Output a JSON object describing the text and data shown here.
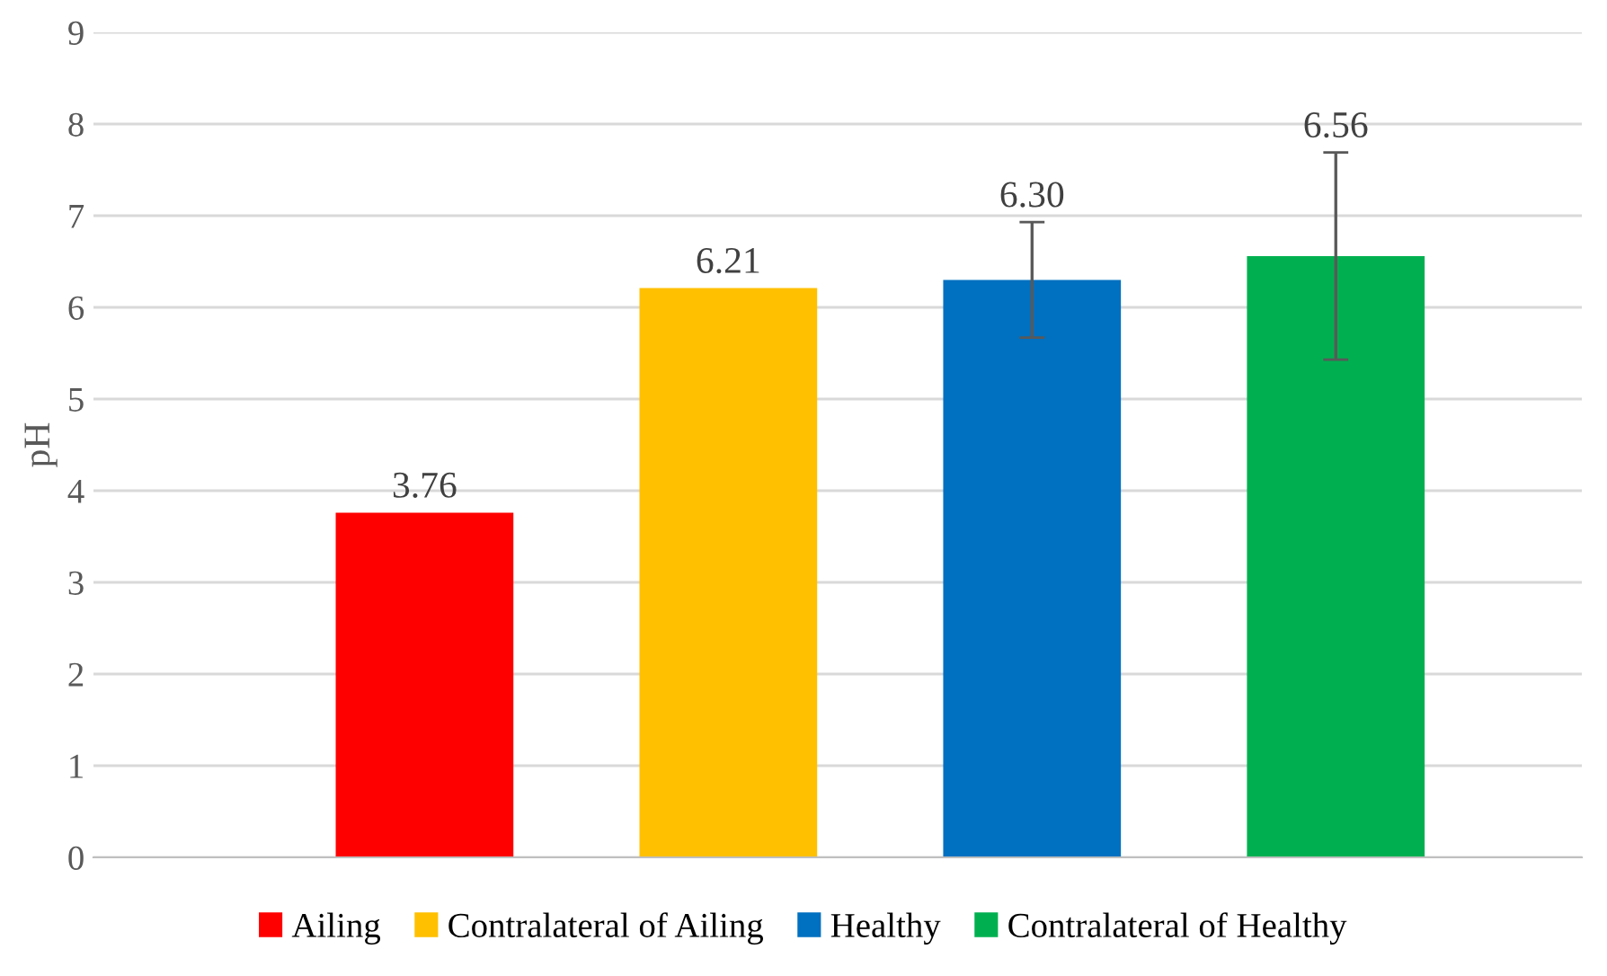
{
  "chart_data": {
    "type": "bar",
    "ylabel": "pH",
    "categories": [
      null
    ],
    "series": [
      {
        "name": "Ailing",
        "color": "#ff0000",
        "values": [
          3.76
        ],
        "errors": [
          null
        ],
        "value_labels": [
          "3.76"
        ]
      },
      {
        "name": "Contralateral of Ailing",
        "color": "#ffc000",
        "values": [
          6.21
        ],
        "errors": [
          null
        ],
        "value_labels": [
          "6.21"
        ]
      },
      {
        "name": "Healthy",
        "color": "#0070c0",
        "values": [
          6.3
        ],
        "errors": [
          0.63
        ],
        "value_labels": [
          "6.30"
        ]
      },
      {
        "name": "Contralateral of Healthy",
        "color": "#00b050",
        "values": [
          6.56
        ],
        "errors": [
          1.13
        ],
        "value_labels": [
          "6.56"
        ]
      }
    ],
    "ylim": [
      0,
      9
    ],
    "yticks": [
      0,
      1,
      2,
      3,
      4,
      5,
      6,
      7,
      8,
      9
    ],
    "grid": "y",
    "legend": "bottom"
  }
}
